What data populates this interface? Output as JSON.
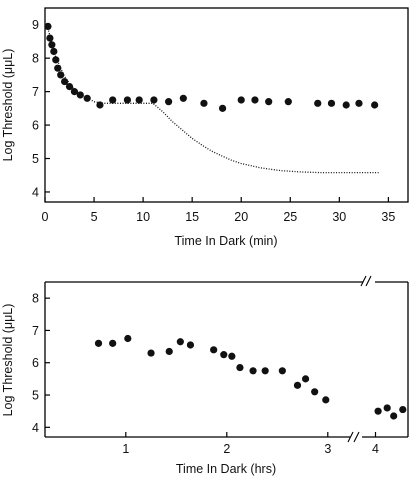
{
  "chart_data": [
    {
      "type": "scatter",
      "title": "",
      "xlabel": "Time In Dark (min)",
      "ylabel": "Log Threshold  (μμL)",
      "xlim": [
        0,
        37
      ],
      "ylim": [
        3.7,
        9.5
      ],
      "x_ticks": [
        0,
        5,
        10,
        15,
        20,
        25,
        30,
        35
      ],
      "y_ticks": [
        4,
        5,
        6,
        7,
        8,
        9
      ],
      "grid": false,
      "series": [
        {
          "style": "markers",
          "x": [
            0.3,
            0.5,
            0.7,
            0.9,
            1.1,
            1.3,
            1.6,
            2.0,
            2.5,
            3.0,
            3.6,
            4.3,
            5.6,
            6.9,
            8.4,
            9.6,
            11.1,
            12.6,
            14.1,
            16.2,
            18.1,
            20.0,
            21.4,
            22.8,
            24.8,
            27.8,
            29.2,
            30.7,
            32.0,
            33.6
          ],
          "y": [
            8.95,
            8.6,
            8.4,
            8.2,
            7.95,
            7.7,
            7.5,
            7.3,
            7.15,
            7.0,
            6.9,
            6.8,
            6.6,
            6.75,
            6.75,
            6.75,
            6.75,
            6.7,
            6.8,
            6.65,
            6.5,
            6.75,
            6.75,
            6.7,
            6.7,
            6.65,
            6.65,
            6.6,
            6.65,
            6.6
          ]
        },
        {
          "style": "dotted-line",
          "x": [
            0.3,
            1,
            2,
            3,
            4,
            5,
            6,
            8,
            10,
            11,
            12,
            13,
            14,
            15,
            16,
            17,
            18,
            19,
            20,
            22,
            24,
            26,
            28,
            30,
            32,
            34
          ],
          "y": [
            8.9,
            8.1,
            7.45,
            7.05,
            6.85,
            6.7,
            6.65,
            6.65,
            6.65,
            6.65,
            6.4,
            6.1,
            5.85,
            5.6,
            5.4,
            5.22,
            5.08,
            4.95,
            4.85,
            4.72,
            4.64,
            4.6,
            4.58,
            4.58,
            4.58,
            4.58
          ]
        }
      ]
    },
    {
      "type": "scatter",
      "title": "",
      "xlabel": "Time In Dark (hrs)",
      "ylabel": "Log Threshold  (μμL)",
      "xlim": [
        0.2,
        4.25
      ],
      "ylim": [
        3.7,
        8.5
      ],
      "x_ticks": [
        1,
        2,
        3,
        4
      ],
      "y_ticks": [
        4,
        5,
        6,
        7,
        8
      ],
      "x_axis_break_between": [
        3.2,
        3.95
      ],
      "grid": false,
      "series": [
        {
          "style": "markers",
          "x": [
            0.73,
            0.87,
            1.02,
            1.25,
            1.43,
            1.54,
            1.64,
            1.87,
            1.97,
            2.05,
            2.13,
            2.26,
            2.38,
            2.55,
            2.7,
            2.78,
            2.87,
            2.98,
            4.02,
            4.09,
            4.14,
            4.21
          ],
          "y": [
            6.6,
            6.6,
            6.75,
            6.3,
            6.35,
            6.65,
            6.55,
            6.4,
            6.25,
            6.2,
            5.85,
            5.75,
            5.75,
            5.75,
            5.3,
            5.5,
            5.1,
            4.85,
            4.5,
            4.6,
            4.35,
            4.55
          ]
        }
      ]
    }
  ]
}
